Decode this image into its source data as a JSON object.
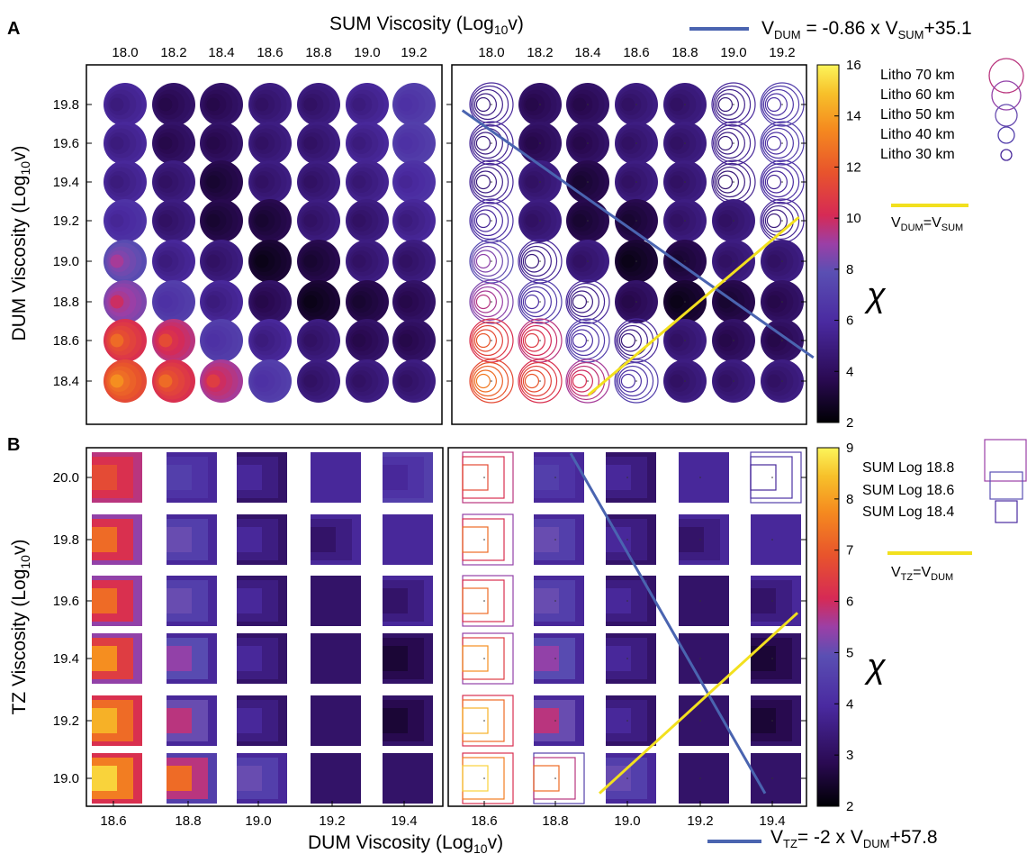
{
  "panel_a": {
    "letter": "A",
    "x_axis_title": "SUM Viscosity (Log",
    "x_axis_sub": "10",
    "x_axis_tail": "v)",
    "y_axis_title": "DUM Viscosity (Log",
    "y_axis_sub": "10",
    "y_axis_tail": "v)",
    "fit_line_label": "V",
    "fit_line_label_sub1": "DUM",
    "fit_line_label_mid": " = -0.86 x V",
    "fit_line_label_sub2": "SUM",
    "fit_line_label_tail": "+35.1",
    "equality_label": "V",
    "equality_sub1": "DUM",
    "equality_mid": "=V",
    "equality_sub2": "SUM",
    "size_legend": [
      "Litho 70 km",
      "Litho 60 km",
      "Litho 50 km",
      "Litho 40 km",
      "Litho 30 km"
    ],
    "colorbar_ticks": [
      "2",
      "4",
      "6",
      "8",
      "10",
      "12",
      "14",
      "16"
    ],
    "colorbar_symbol": "χ"
  },
  "panel_b": {
    "letter": "B",
    "x_axis_title": "DUM Viscosity (Log",
    "x_axis_sub": "10",
    "x_axis_tail": "v)",
    "y_axis_title": "TZ Viscosity (Log",
    "y_axis_sub": "10",
    "y_axis_tail": "v)",
    "fit_line_label": "V",
    "fit_line_label_sub1": "TZ",
    "fit_line_label_mid": "= -2 x V",
    "fit_line_label_sub2": "DUM",
    "fit_line_label_tail": "+57.8",
    "equality_label": "V",
    "equality_sub1": "TZ",
    "equality_mid": "=V",
    "equality_sub2": "DUM",
    "size_legend": [
      "SUM Log 18.8",
      "SUM Log 18.6",
      "SUM Log 18.4"
    ],
    "colorbar_ticks": [
      "2",
      "3",
      "4",
      "5",
      "6",
      "7",
      "8",
      "9"
    ],
    "colorbar_symbol": "χ"
  },
  "colors": {
    "fit_line": "#4a64b0",
    "equality_line": "#f2e01e",
    "colormap": [
      "#000004",
      "#2a0a52",
      "#4a2aa0",
      "#5a4fb3",
      "#9b3fa6",
      "#d62a55",
      "#e8542c",
      "#f58a1f",
      "#f7c02a",
      "#fcf55a"
    ]
  },
  "chart_data": [
    {
      "type": "heatmap",
      "panel": "A",
      "xlabel": "SUM Viscosity (Log10v)",
      "ylabel": "DUM Viscosity (Log10v)",
      "x": [
        18.0,
        18.2,
        18.4,
        18.6,
        18.8,
        19.0,
        19.2
      ],
      "y": [
        19.8,
        19.6,
        19.4,
        19.2,
        19.0,
        18.8,
        18.6,
        18.4
      ],
      "size_series": [
        "Litho 70 km",
        "Litho 60 km",
        "Litho 50 km",
        "Litho 40 km",
        "Litho 30 km"
      ],
      "colorbar": {
        "label": "χ",
        "range": [
          2,
          16
        ]
      },
      "values_outer_misfit": [
        [
          5.0,
          4.0,
          4.0,
          4.5,
          4.5,
          5.0,
          6.0
        ],
        [
          5.0,
          4.0,
          4.0,
          4.5,
          4.5,
          5.0,
          6.0
        ],
        [
          5.0,
          4.5,
          3.5,
          4.5,
          4.5,
          4.8,
          5.5
        ],
        [
          5.5,
          4.5,
          3.5,
          3.5,
          4.5,
          4.5,
          5.0
        ],
        [
          6.5,
          5.0,
          4.5,
          3.0,
          3.5,
          4.5,
          4.5
        ],
        [
          7.5,
          6.0,
          5.0,
          4.0,
          3.0,
          3.5,
          4.0
        ],
        [
          10.0,
          9.0,
          6.0,
          5.0,
          4.5,
          4.0,
          4.0
        ],
        [
          11.0,
          10.0,
          8.5,
          6.0,
          4.5,
          4.5,
          4.5
        ]
      ],
      "fit_line": {
        "slope": -0.86,
        "intercept": 35.1
      },
      "equality_line": true
    },
    {
      "type": "heatmap",
      "panel": "B",
      "xlabel": "DUM Viscosity (Log10v)",
      "ylabel": "TZ Viscosity (Log10v)",
      "x": [
        18.6,
        18.8,
        19.0,
        19.2,
        19.4
      ],
      "y": [
        20.0,
        19.8,
        19.6,
        19.4,
        19.2,
        19.0
      ],
      "size_series": [
        "SUM Log 18.8",
        "SUM Log 18.6",
        "SUM Log 18.4"
      ],
      "colorbar": {
        "label": "χ",
        "range": [
          2,
          9
        ]
      },
      "values_outer_misfit": [
        [
          5.5,
          3.5,
          3.0,
          3.5,
          4.0
        ],
        [
          5.0,
          3.5,
          3.0,
          3.5,
          3.5
        ],
        [
          5.0,
          3.5,
          3.0,
          3.0,
          3.5
        ],
        [
          5.0,
          3.5,
          3.0,
          3.0,
          3.0
        ],
        [
          6.0,
          3.5,
          3.0,
          3.0,
          3.0
        ],
        [
          6.0,
          4.0,
          3.5,
          3.0,
          3.0
        ]
      ],
      "values_inner_misfit": [
        [
          6.5,
          4.0,
          3.5,
          3.5,
          3.5
        ],
        [
          7.0,
          4.5,
          3.5,
          3.0,
          3.5
        ],
        [
          7.0,
          4.5,
          3.5,
          3.0,
          3.0
        ],
        [
          7.5,
          5.0,
          3.5,
          3.0,
          2.5
        ],
        [
          8.0,
          5.5,
          3.5,
          3.0,
          2.5
        ],
        [
          8.5,
          7.0,
          4.5,
          3.0,
          3.0
        ]
      ],
      "fit_line": {
        "slope": -2,
        "intercept": 57.8
      },
      "equality_line": true
    }
  ]
}
